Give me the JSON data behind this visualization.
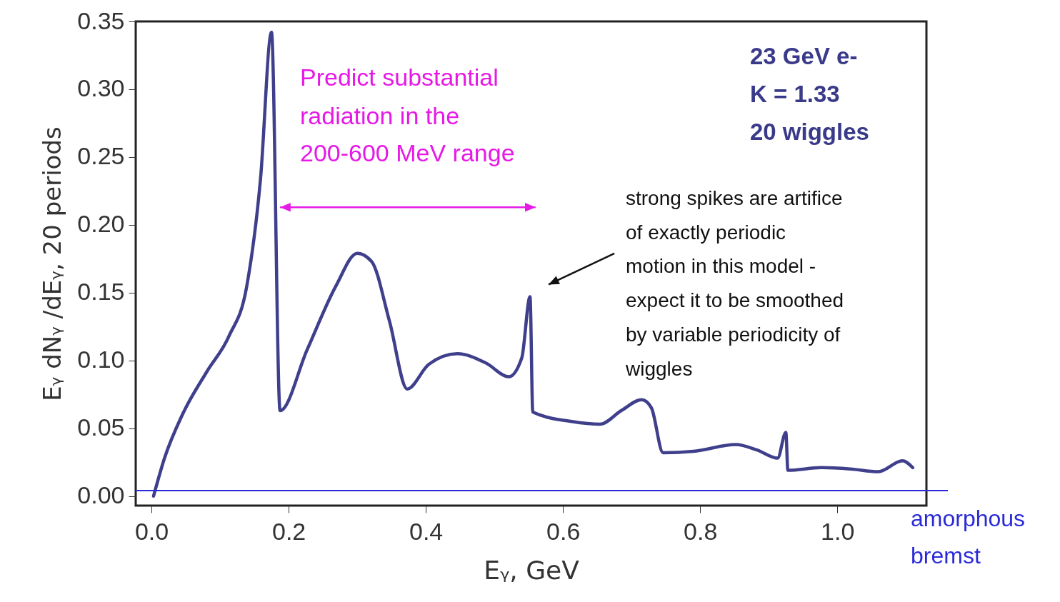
{
  "chart_data": {
    "type": "line",
    "xlabel": "Eᵧ, GeV",
    "ylabel": "Eᵧ dNᵧ /dEᵧ, 20 periods",
    "x": [
      0.003,
      0.019,
      0.045,
      0.081,
      0.113,
      0.139,
      0.159,
      0.175,
      0.1875,
      0.227,
      0.269,
      0.3,
      0.321,
      0.347,
      0.373,
      0.404,
      0.446,
      0.488,
      0.521,
      0.54,
      0.552,
      0.556,
      0.613,
      0.654,
      0.685,
      0.715,
      0.729,
      0.746,
      0.79,
      0.852,
      0.883,
      0.913,
      0.925,
      0.928,
      0.977,
      1.019,
      1.06,
      1.095,
      1.11
    ],
    "series": [
      {
        "color": "#3f3f8c",
        "values": [
          0.0,
          0.028,
          0.06,
          0.092,
          0.118,
          0.155,
          0.234,
          0.342,
          0.063,
          0.108,
          0.155,
          0.179,
          0.173,
          0.129,
          0.079,
          0.097,
          0.105,
          0.098,
          0.088,
          0.102,
          0.147,
          0.062,
          0.055,
          0.053,
          0.063,
          0.071,
          0.065,
          0.032,
          0.033,
          0.038,
          0.034,
          0.028,
          0.047,
          0.019,
          0.021,
          0.02,
          0.018,
          0.026,
          0.021
        ]
      }
    ],
    "xlim": [
      -0.023,
      1.13
    ],
    "ylim": [
      -0.007,
      0.35
    ],
    "xticks": [
      {
        "value": 0,
        "label": "0.0"
      },
      0.2,
      0.4,
      0.6,
      0.8,
      {
        "value": 1,
        "label": "1.0"
      }
    ],
    "yticks": [
      {
        "value": 0,
        "label": "0.00"
      },
      {
        "value": 0.05,
        "label": "0.05"
      },
      {
        "value": 0.1,
        "label": "0.10"
      },
      0.15,
      {
        "value": 0.2,
        "label": "0.20"
      },
      0.25,
      {
        "value": 0.3,
        "label": "0.30"
      },
      0.35
    ],
    "grid": false,
    "marker": "none",
    "line_style": "solid",
    "ref_lines": [
      {
        "axis": "y",
        "value": 0.004,
        "label": "amorphous bremst",
        "color": "#2a2ad8"
      }
    ],
    "annotations": [
      "Predict substantial",
      "radiation in the",
      "200-600 MeV range",
      "23 GeV e-",
      "K = 1.33",
      "20 wiggles",
      "strong spikes are artifice",
      "of exactly periodic",
      "motion in this model -",
      "expect it to be smoothed",
      "by variable periodicity of",
      "wiggles"
    ]
  }
}
